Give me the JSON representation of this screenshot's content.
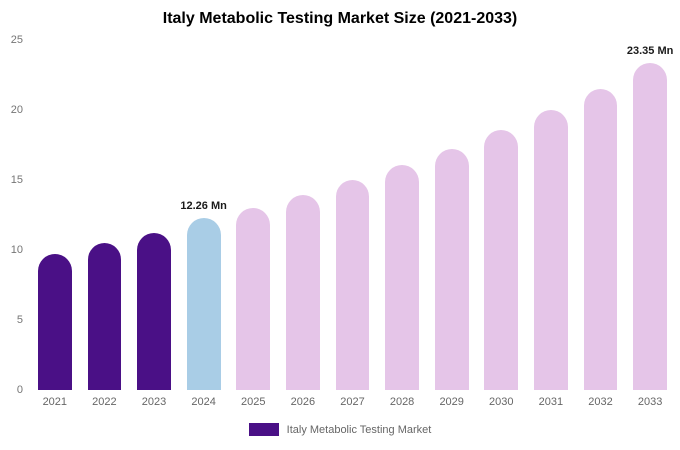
{
  "chart": {
    "legend_label": "Italy Metabolic Testing Market",
    "colors": {
      "historical": "#4a1086",
      "current_year": "#a9cde6",
      "forecast": "#e5c5e8",
      "legend_swatch": "#4a1086",
      "title_text": "#000000",
      "axis_text": "#757575"
    }
  },
  "chart_data": {
    "type": "bar",
    "title": "Italy Metabolic Testing Market Size (2021-2033)",
    "categories": [
      "2021",
      "2022",
      "2023",
      "2024",
      "2025",
      "2026",
      "2027",
      "2028",
      "2029",
      "2030",
      "2031",
      "2032",
      "2033"
    ],
    "values": [
      9.7,
      10.5,
      11.2,
      12.26,
      13.0,
      13.9,
      15.0,
      16.1,
      17.2,
      18.6,
      20.0,
      21.5,
      23.35
    ],
    "bar_colors": [
      "#4a1086",
      "#4a1086",
      "#4a1086",
      "#a9cde6",
      "#e5c5e8",
      "#e5c5e8",
      "#e5c5e8",
      "#e5c5e8",
      "#e5c5e8",
      "#e5c5e8",
      "#e5c5e8",
      "#e5c5e8",
      "#e5c5e8"
    ],
    "annotations": {
      "2024": "12.26 Mn",
      "2033": "23.35 Mn"
    },
    "xlabel": "",
    "ylabel": "",
    "ylim": [
      0,
      25
    ],
    "yticks": [
      0,
      5,
      10,
      15,
      20,
      25
    ],
    "grid": false,
    "legend": [
      "Italy Metabolic Testing Market"
    ],
    "legend_position": "bottom"
  }
}
